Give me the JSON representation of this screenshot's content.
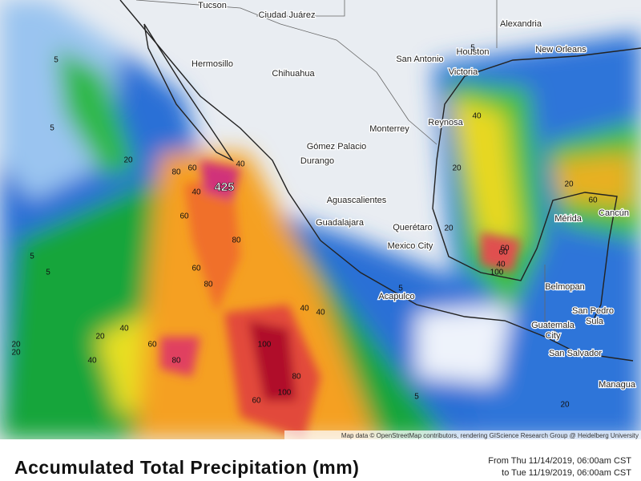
{
  "map": {
    "attribution": "Map data © OpenStreetMap contributors, rendering GIScience Research Group @ Heidelberg University",
    "max_label": "425",
    "cities": [
      "Tucson",
      "Ciudad Juárez",
      "Alexandria",
      "Hermosillo",
      "Chihuahua",
      "San Antonio",
      "Houston",
      "New Orleans",
      "Victoria",
      "Monterrey",
      "Reynosa",
      "Gómez Palacio",
      "Durango",
      "Aguascalientes",
      "Guadalajara",
      "Querétaro",
      "Mexico City",
      "Acapulco",
      "Mérida",
      "Cancún",
      "Belmopan",
      "San Pedro",
      "Sula",
      "Guatemala",
      "City",
      "San Salvador",
      "Managua"
    ],
    "contour_labels": [
      "5",
      "20",
      "5",
      "20",
      "5",
      "40",
      "60",
      "80",
      "40",
      "60",
      "80",
      "40",
      "60",
      "80",
      "100",
      "60",
      "40",
      "100",
      "80",
      "60",
      "40",
      "20",
      "5",
      "20",
      "40",
      "60",
      "100",
      "60",
      "20",
      "5",
      "40",
      "20",
      "60",
      "80",
      "40",
      "20",
      "5",
      "5",
      "20"
    ]
  },
  "footer": {
    "title": "Accumulated Total Precipitation (mm)",
    "from": "From Thu 11/14/2019, 06:00am CST",
    "to": "to Tue 11/19/2019, 06:00am CST"
  }
}
